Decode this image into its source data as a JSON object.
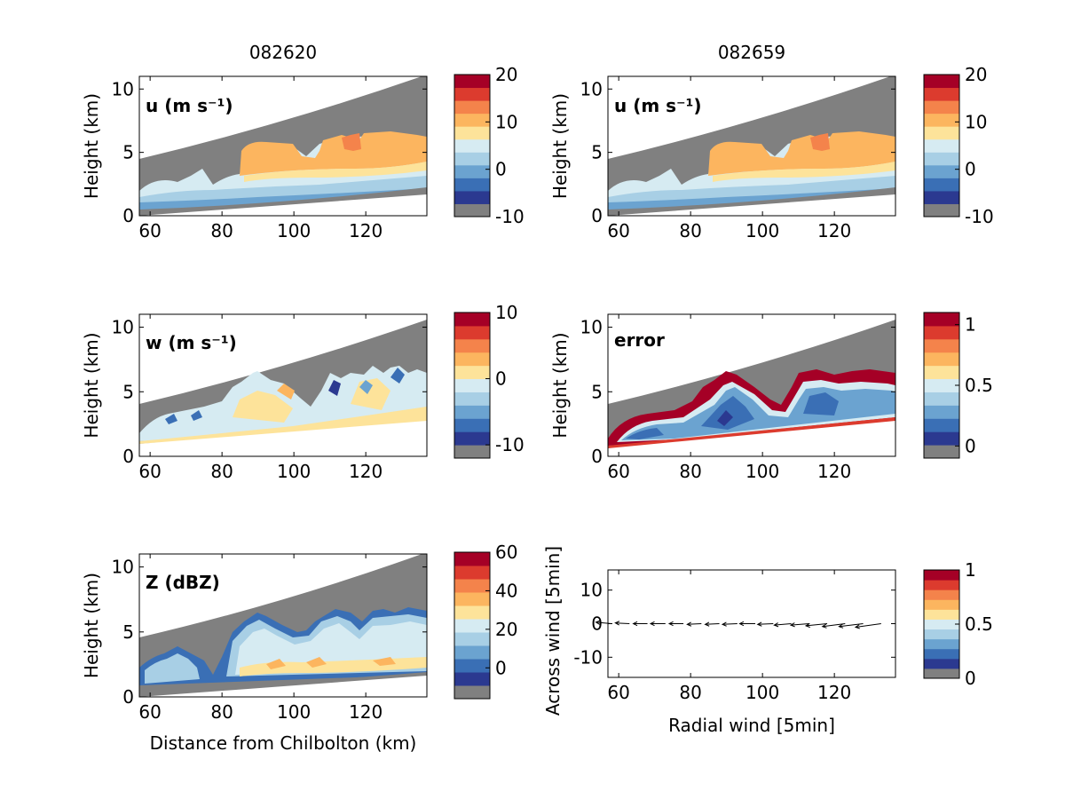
{
  "figure": {
    "column_titles": [
      "082620",
      "082659"
    ],
    "palette": [
      "#808080",
      "#2b3990",
      "#3a6fb5",
      "#6ba3d0",
      "#a8cfe5",
      "#d6ebf2",
      "#fde39a",
      "#fcb55f",
      "#f4834b",
      "#dc3b2e",
      "#a50026"
    ]
  },
  "chart_data": [
    {
      "id": "u1",
      "type": "heatmap",
      "panel_label": "u (m s⁻¹)",
      "column_title": "082620",
      "ylabel": "Height (km)",
      "xlabel": "",
      "xlim": [
        57,
        137
      ],
      "ylim": [
        0,
        11
      ],
      "xticks": [
        60,
        80,
        100,
        120
      ],
      "yticks": [
        0,
        5,
        10
      ],
      "colorbar": {
        "range": [
          -10,
          20
        ],
        "ticks": [
          20,
          10,
          0,
          -10
        ]
      }
    },
    {
      "id": "u2",
      "type": "heatmap",
      "panel_label": "u (m s⁻¹)",
      "column_title": "082659",
      "ylabel": "Height (km)",
      "xlabel": "",
      "xlim": [
        57,
        137
      ],
      "ylim": [
        0,
        11
      ],
      "xticks": [
        60,
        80,
        100,
        120
      ],
      "yticks": [
        0,
        5,
        10
      ],
      "colorbar": {
        "range": [
          -10,
          20
        ],
        "ticks": [
          20,
          10,
          0,
          -10
        ]
      }
    },
    {
      "id": "w",
      "type": "heatmap",
      "panel_label": "w (m s⁻¹)",
      "ylabel": "Height (km)",
      "xlabel": "",
      "xlim": [
        57,
        137
      ],
      "ylim": [
        0,
        11
      ],
      "xticks": [
        60,
        80,
        100,
        120
      ],
      "yticks": [
        0,
        5,
        10
      ],
      "colorbar": {
        "range": [
          -12,
          10
        ],
        "ticks": [
          10,
          0,
          -10
        ]
      }
    },
    {
      "id": "err",
      "type": "heatmap",
      "panel_label": "error",
      "ylabel": "Height (km)",
      "xlabel": "",
      "xlim": [
        57,
        137
      ],
      "ylim": [
        0,
        11
      ],
      "xticks": [
        60,
        80,
        100,
        120
      ],
      "yticks": [
        0,
        5,
        10
      ],
      "colorbar": {
        "range": [
          -0.1,
          1.1
        ],
        "ticks": [
          1,
          0.5,
          0
        ]
      }
    },
    {
      "id": "z",
      "type": "heatmap",
      "panel_label": "Z (dBZ)",
      "ylabel": "Height (km)",
      "xlabel": "Distance from Chilbolton (km)",
      "xlim": [
        57,
        137
      ],
      "ylim": [
        0,
        11
      ],
      "xticks": [
        60,
        80,
        100,
        120
      ],
      "yticks": [
        0,
        5,
        10
      ],
      "colorbar": {
        "range": [
          -16,
          60
        ],
        "ticks": [
          60,
          40,
          20,
          0
        ]
      }
    },
    {
      "id": "q",
      "type": "scatter",
      "panel_label": "",
      "ylabel": "Across wind [5min]",
      "xlabel": "Radial wind [5min]",
      "xlim": [
        57,
        137
      ],
      "ylim": [
        -16,
        16
      ],
      "xticks": [
        60,
        80,
        100,
        120
      ],
      "yticks": [
        10,
        0,
        -10
      ],
      "x": [
        58,
        63,
        68,
        73,
        78,
        83,
        88,
        93,
        98,
        103,
        108,
        113,
        118,
        123,
        128,
        133
      ],
      "u": [
        -2.2,
        -2.0,
        -2.0,
        -2.1,
        -2.0,
        -2.0,
        -2.0,
        -2.1,
        -2.2,
        -2.2,
        -2.4,
        -2.6,
        -3.0,
        -3.2,
        -3.4,
        -3.6
      ],
      "v": [
        0.2,
        0.1,
        0.0,
        0.0,
        0.0,
        -0.1,
        -0.1,
        -0.1,
        0.0,
        -0.1,
        -0.2,
        -0.2,
        -0.3,
        -0.4,
        -0.4,
        -0.5
      ],
      "colorbar": {
        "range": [
          0,
          1
        ],
        "ticks": [
          1,
          0.5,
          0
        ]
      }
    }
  ]
}
